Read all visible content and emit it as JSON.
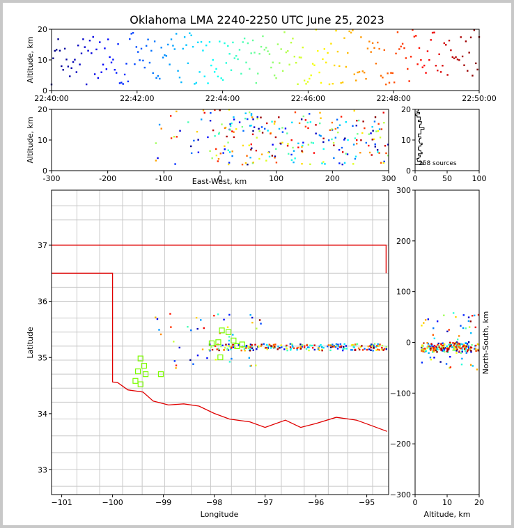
{
  "title": "Oklahoma LMA 2240-2250 UTC June 25, 2023",
  "panels": {
    "time_height": {
      "ylabel": "Altitude, km",
      "xticks": [
        "22:40:00",
        "22:42:00",
        "22:44:00",
        "22:46:00",
        "22:48:00",
        "22:50:00"
      ],
      "yticks": [
        "0",
        "10",
        "20"
      ]
    },
    "ew_height": {
      "ylabel": "Altitude, km",
      "xlabel": "East-West, km",
      "xticks": [
        "-300",
        "-200",
        "-100",
        "0",
        "100",
        "200",
        "300"
      ],
      "yticks": [
        "0",
        "10",
        "20"
      ]
    },
    "histogram": {
      "xticks": [
        "0",
        "50",
        "100"
      ],
      "yticks": [
        "0",
        "10",
        "20"
      ],
      "annotation": "258 sources"
    },
    "plan_view": {
      "ylabel": "Latitude",
      "xlabel": "Longitude",
      "xticks": [
        "−101",
        "−100",
        "−99",
        "−98",
        "−97",
        "−96",
        "−95"
      ],
      "yticks": [
        "33",
        "34",
        "35",
        "36",
        "37"
      ]
    },
    "ns_height": {
      "ylabel": "North-South, km",
      "xlabel": "Altitude, km",
      "xticks": [
        "0",
        "10",
        "20"
      ],
      "yticks": [
        "−300",
        "−200",
        "−100",
        "0",
        "100",
        "200",
        "300"
      ]
    }
  },
  "chart_data": {
    "type": "scatter",
    "source_count": 258,
    "time_range": [
      "22:40:00",
      "22:50:00"
    ],
    "altitude_range_km": [
      0,
      20
    ],
    "ew_range_km": [
      -300,
      300
    ],
    "ns_range_km": [
      -300,
      300
    ],
    "lon_range": [
      -101.2,
      -94.6
    ],
    "lat_range": [
      32.6,
      38.0
    ],
    "color_by": "time (jet colormap, blue early to red late)",
    "stations": [
      [
        -97.85,
        35.48
      ],
      [
        -97.72,
        35.45
      ],
      [
        -98.05,
        35.25
      ],
      [
        -97.92,
        35.27
      ],
      [
        -97.55,
        35.2
      ],
      [
        -97.45,
        35.23
      ],
      [
        -97.62,
        35.3
      ],
      [
        -97.88,
        35.0
      ],
      [
        -99.45,
        34.98
      ],
      [
        -99.38,
        34.85
      ],
      [
        -99.5,
        34.75
      ],
      [
        -99.35,
        34.7
      ],
      [
        -99.55,
        34.58
      ],
      [
        -99.45,
        34.52
      ],
      [
        -99.05,
        34.7
      ]
    ],
    "source_clusters": [
      {
        "region": "main east-west line",
        "lon_span": [
          -98.2,
          -94.6
        ],
        "lat": 35.17,
        "alt_km": [
          2,
          18
        ]
      },
      {
        "region": "scattered west",
        "lon_span": [
          -99.2,
          -97.3
        ],
        "lat_span": [
          34.8,
          35.8
        ],
        "alt_km": [
          4,
          17
        ]
      }
    ],
    "sample_sources": [
      {
        "t": "22:40:10",
        "alt": 5.2,
        "lon": -96.4,
        "lat": 35.17
      },
      {
        "t": "22:40:40",
        "alt": 9.5,
        "lon": -96.1,
        "lat": 35.19
      },
      {
        "t": "22:41:00",
        "alt": 12.8,
        "lon": -96.0,
        "lat": 35.16
      },
      {
        "t": "22:41:05",
        "alt": 18.0,
        "lon": -95.9,
        "lat": 35.18
      },
      {
        "t": "22:42:00",
        "alt": 6.5,
        "lon": -96.2,
        "lat": 35.15
      },
      {
        "t": "22:42:30",
        "alt": 15.5,
        "lon": -95.8,
        "lat": 35.2
      },
      {
        "t": "22:43:00",
        "alt": 8.0,
        "lon": -95.7,
        "lat": 35.17
      },
      {
        "t": "22:44:00",
        "alt": 4.5,
        "lon": -95.5,
        "lat": 35.16
      },
      {
        "t": "22:45:00",
        "alt": 14.0,
        "lon": -95.4,
        "lat": 35.19
      },
      {
        "t": "22:46:00",
        "alt": 10.5,
        "lon": -95.3,
        "lat": 35.15
      },
      {
        "t": "22:46:30",
        "alt": 20.0,
        "lon": -95.6,
        "lat": 35.2
      },
      {
        "t": "22:47:00",
        "alt": 16.0,
        "lon": -95.2,
        "lat": 35.17
      },
      {
        "t": "22:48:00",
        "alt": 8.5,
        "lon": -96.8,
        "lat": 35.2
      },
      {
        "t": "22:49:00",
        "alt": 12.0,
        "lon": -97.1,
        "lat": 35.22
      },
      {
        "t": "22:49:40",
        "alt": 15.0,
        "lon": -97.8,
        "lat": 35.22
      },
      {
        "t": "22:49:55",
        "alt": 3.5,
        "lon": -98.0,
        "lat": 35.2
      }
    ]
  }
}
